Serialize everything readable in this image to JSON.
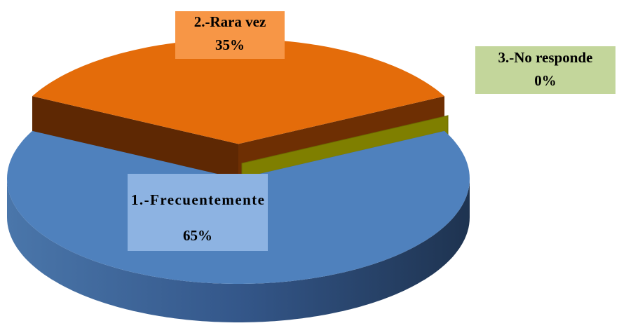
{
  "chart_data": {
    "type": "pie",
    "categories": [
      "1.-Frecuentemente",
      "2.-Rara vez",
      "3.-No responde"
    ],
    "values": [
      65,
      35,
      0
    ],
    "value_labels": [
      "65%",
      "35%",
      "0%"
    ],
    "colors": [
      "#4f81bd",
      "#e46c0a",
      "#7f7f00"
    ]
  }
}
